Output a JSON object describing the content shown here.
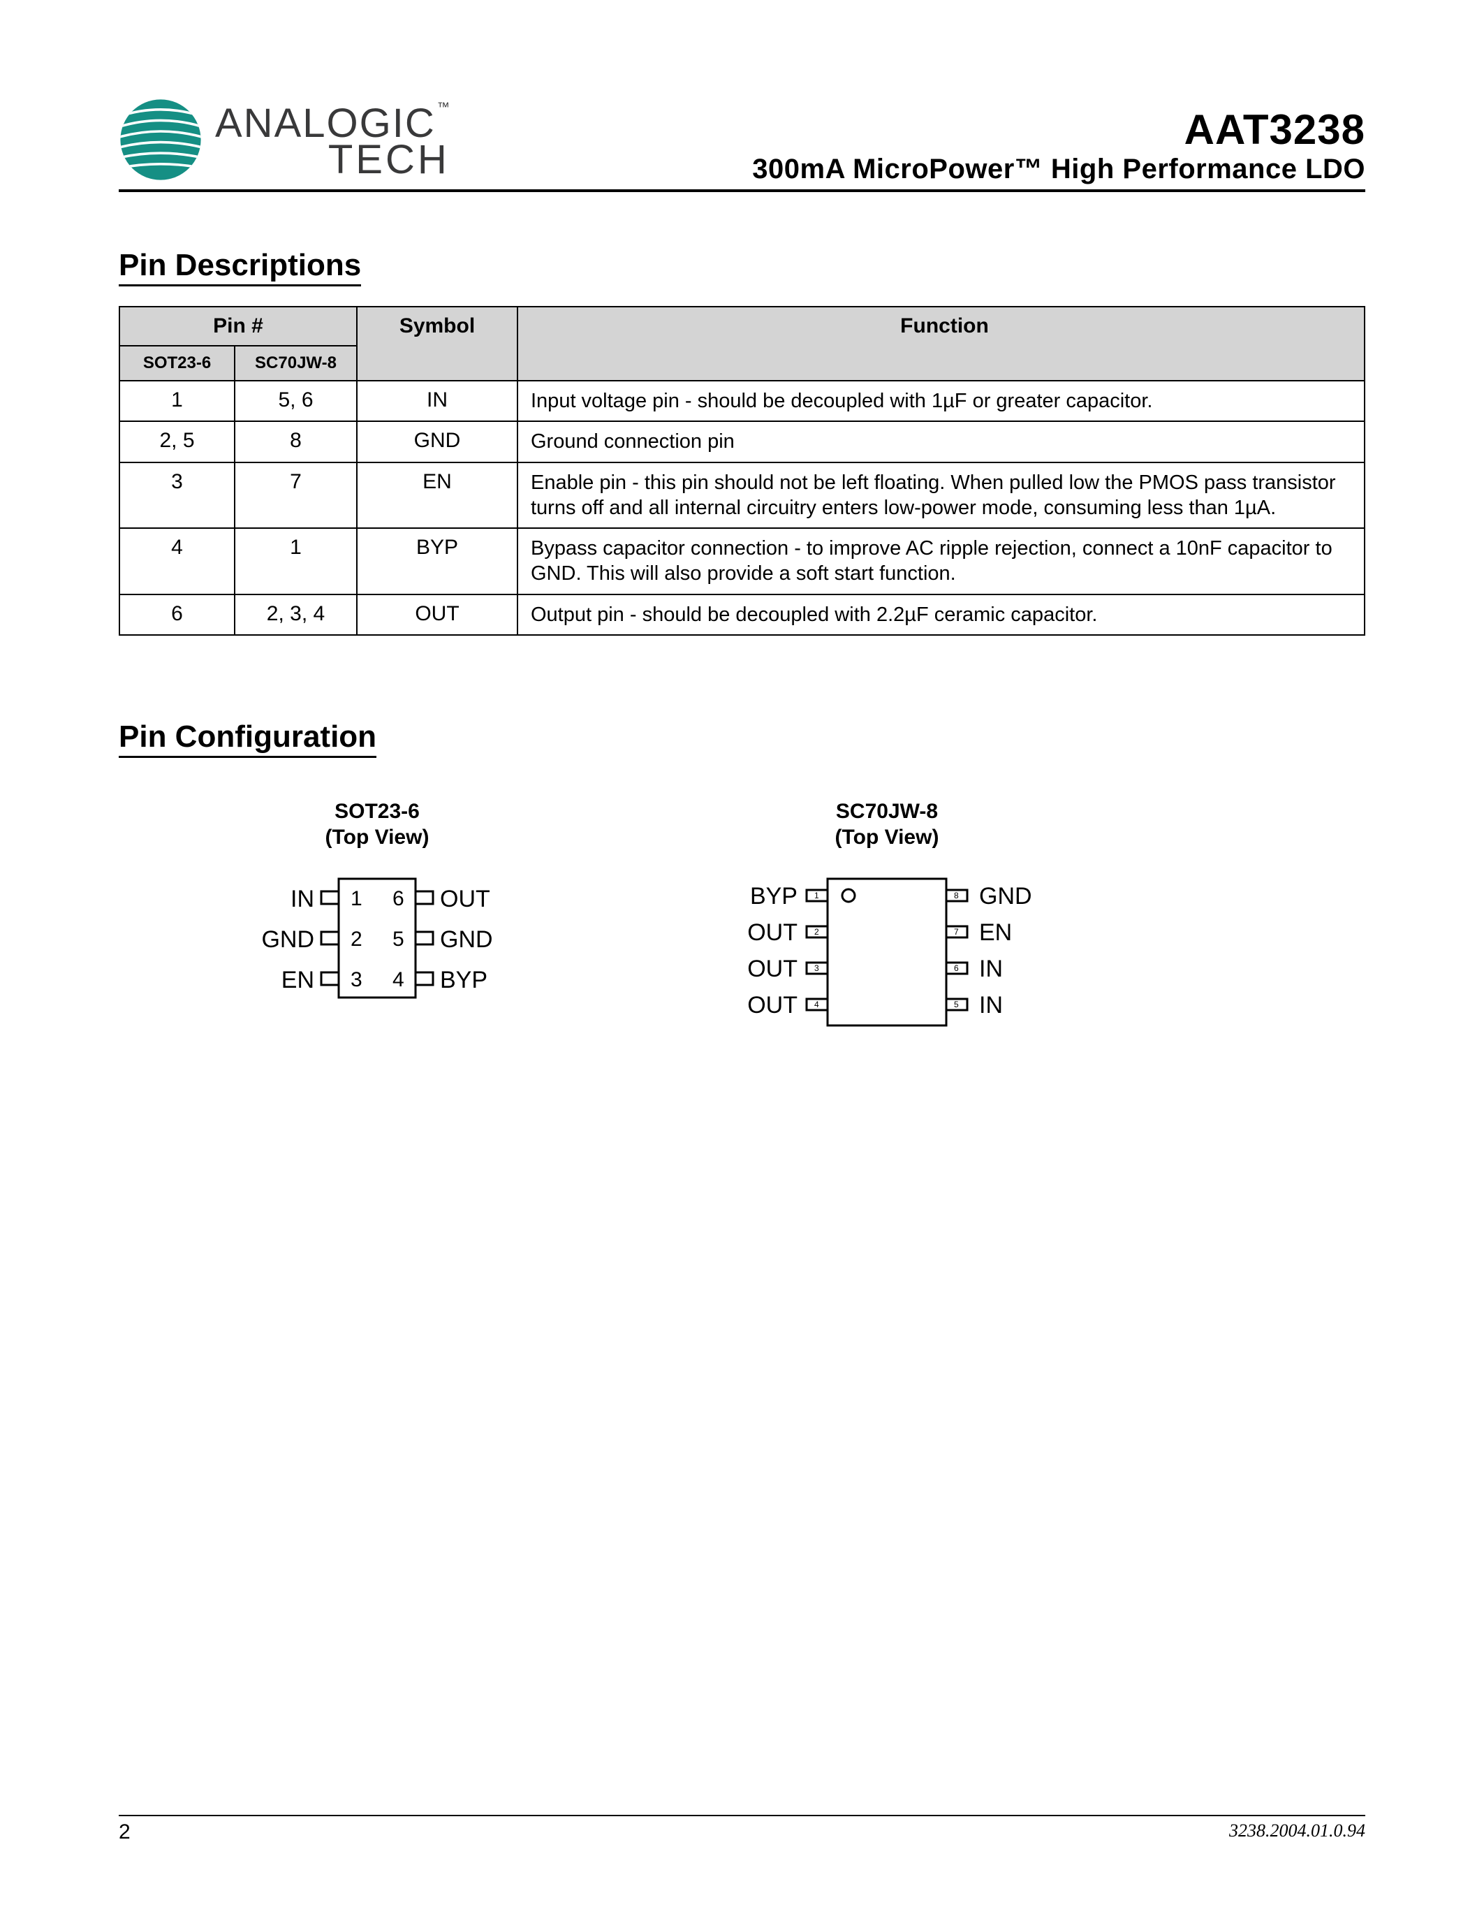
{
  "colors": {
    "logo_teal": "#158f84",
    "table_header_bg": "#d4d4d4",
    "text": "#000000",
    "logo_text": "#39393a",
    "rule": "#000000"
  },
  "header": {
    "company_line1": "ANALOGIC",
    "company_tm": "™",
    "company_line2": "TECH",
    "part_number": "AAT3238",
    "subtitle": "300mA MicroPower™ High Performance LDO"
  },
  "sections": {
    "pin_descriptions_heading": "Pin Descriptions",
    "pin_configuration_heading": "Pin Configuration"
  },
  "table": {
    "col_pin_group": "Pin #",
    "col_pkg1": "SOT23-6",
    "col_pkg2": "SC70JW-8",
    "col_symbol": "Symbol",
    "col_function": "Function",
    "rows": [
      {
        "p1": "1",
        "p2": "5, 6",
        "sym": "IN",
        "func": "Input voltage pin - should be decoupled with 1µF or greater capacitor."
      },
      {
        "p1": "2, 5",
        "p2": "8",
        "sym": "GND",
        "func": "Ground connection pin"
      },
      {
        "p1": "3",
        "p2": "7",
        "sym": "EN",
        "func": "Enable pin - this pin should not be left floating.  When pulled low the PMOS pass transistor turns off and all internal circuitry enters low-power mode, consuming less than 1µA."
      },
      {
        "p1": "4",
        "p2": "1",
        "sym": "BYP",
        "func": "Bypass capacitor connection - to improve AC ripple rejection, connect a 10nF capacitor to GND.  This will also provide a soft start function."
      },
      {
        "p1": "6",
        "p2": "2, 3, 4",
        "sym": "OUT",
        "func": "Output pin - should be decoupled with 2.2µF ceramic capacitor."
      }
    ]
  },
  "packages": {
    "sot23_6": {
      "title_line1": "SOT23-6",
      "title_line2": "(Top View)",
      "left_pins": [
        {
          "n": "1",
          "lbl": "IN"
        },
        {
          "n": "2",
          "lbl": "GND"
        },
        {
          "n": "3",
          "lbl": "EN"
        }
      ],
      "right_pins": [
        {
          "n": "6",
          "lbl": "OUT"
        },
        {
          "n": "5",
          "lbl": "GND"
        },
        {
          "n": "4",
          "lbl": "BYP"
        }
      ]
    },
    "sc70jw_8": {
      "title_line1": "SC70JW-8",
      "title_line2": "(Top View)",
      "left_pins": [
        {
          "n": "1",
          "lbl": "BYP"
        },
        {
          "n": "2",
          "lbl": "OUT"
        },
        {
          "n": "3",
          "lbl": "OUT"
        },
        {
          "n": "4",
          "lbl": "OUT"
        }
      ],
      "right_pins": [
        {
          "n": "8",
          "lbl": "GND"
        },
        {
          "n": "7",
          "lbl": "EN"
        },
        {
          "n": "6",
          "lbl": "IN"
        },
        {
          "n": "5",
          "lbl": "IN"
        }
      ]
    }
  },
  "footer": {
    "page": "2",
    "doc_id": "3238.2004.01.0.94"
  }
}
